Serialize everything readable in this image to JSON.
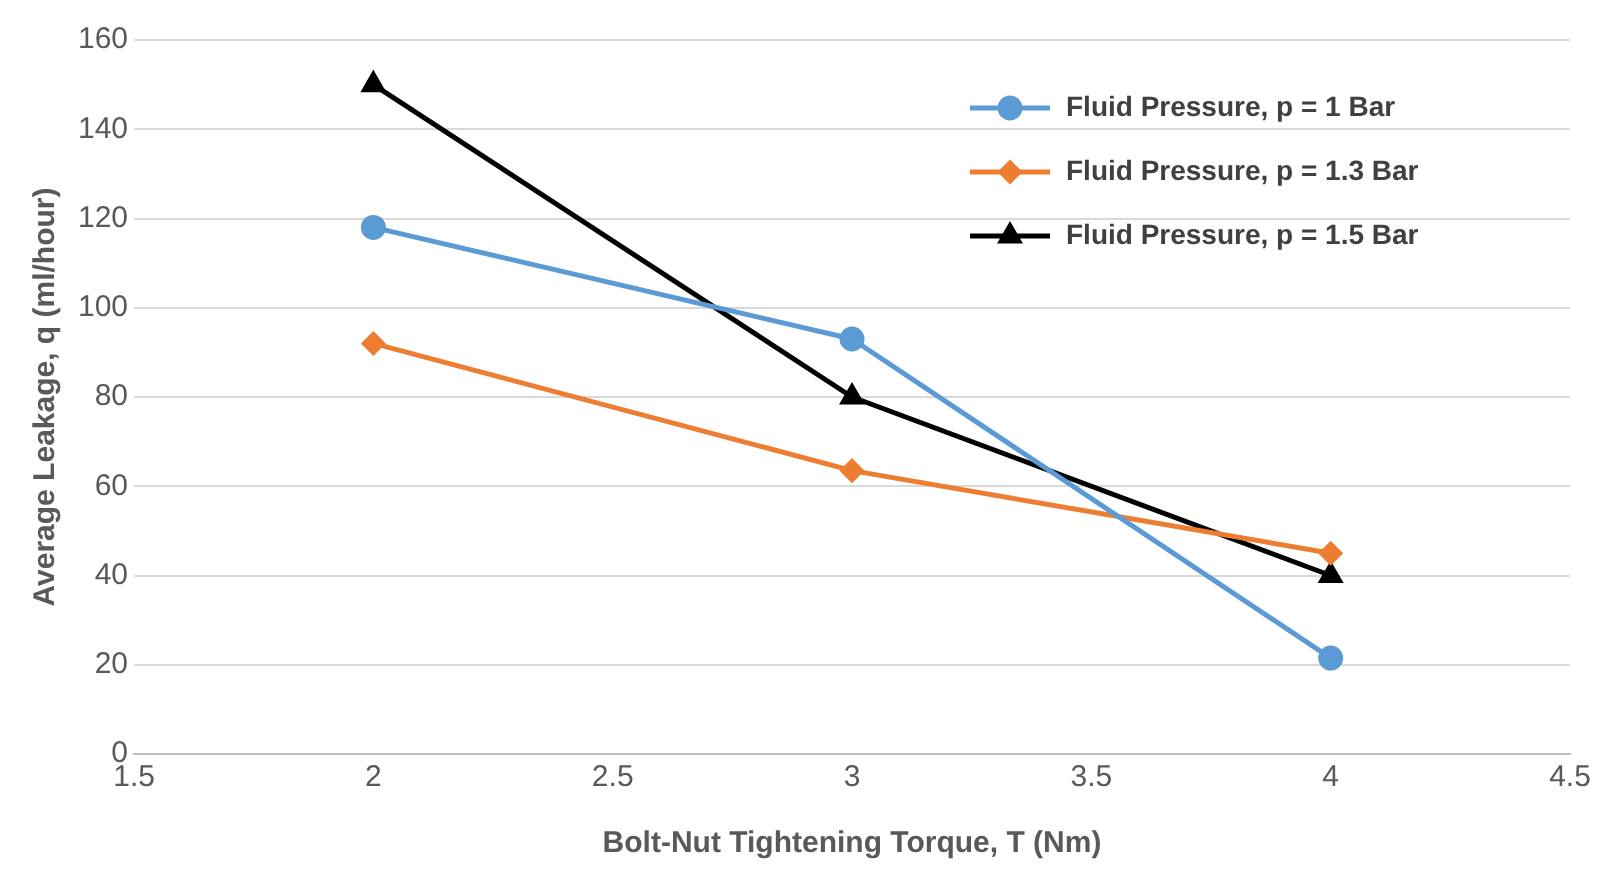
{
  "chart_data": {
    "type": "line",
    "xlabel": "Bolt-Nut Tightening Torque, T (Nm)",
    "ylabel": "Average Leakage, q (ml/hour)",
    "x": [
      2,
      3,
      4
    ],
    "series": [
      {
        "name": "Fluid Pressure, p = 1 Bar",
        "color": "#5b9bd5",
        "values": [
          118,
          93,
          21.5
        ],
        "marker": "circle"
      },
      {
        "name": "Fluid Pressure, p = 1.3 Bar",
        "color": "#ed7d31",
        "values": [
          92,
          63.5,
          45
        ],
        "marker": "diamond"
      },
      {
        "name": "Fluid Pressure, p = 1.5 Bar",
        "color": "#000000",
        "values": [
          150,
          80,
          40
        ],
        "marker": "triangle"
      }
    ],
    "xlim": [
      1.5,
      4.5
    ],
    "xticks": [
      1.5,
      2,
      2.5,
      3,
      3.5,
      4,
      4.5
    ],
    "ylim": [
      0,
      160
    ],
    "yticks": [
      0,
      20,
      40,
      60,
      80,
      100,
      120,
      140,
      160
    ],
    "grid": "y",
    "legend": "top right",
    "line_style": "solid"
  }
}
